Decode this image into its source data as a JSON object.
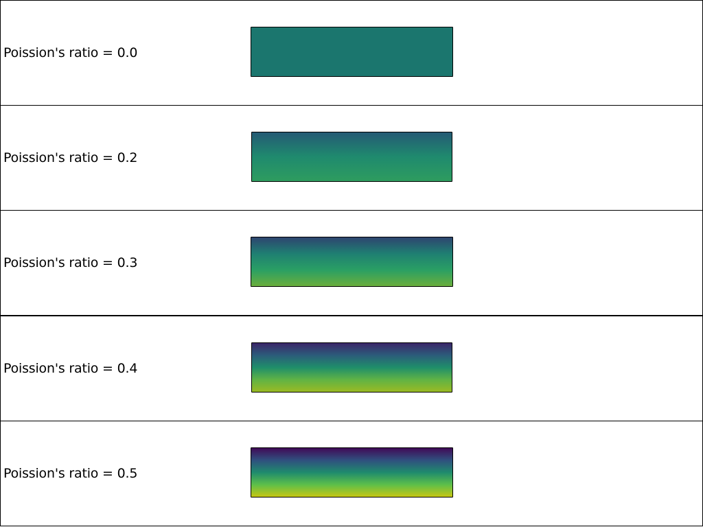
{
  "panels": [
    {
      "label": "Poission's ratio = 0.0",
      "poisson_ratio": 0.0,
      "gradient_colors": [
        "#1b766e",
        "#1b766e"
      ]
    },
    {
      "label": "Poission's ratio = 0.2",
      "poisson_ratio": 0.2,
      "gradient_colors": [
        "#255a74",
        "#1f8a6e",
        "#2e9c5f"
      ]
    },
    {
      "label": "Poission's ratio = 0.3",
      "poisson_ratio": 0.3,
      "gradient_colors": [
        "#2e456f",
        "#1f7f72",
        "#2a9f64",
        "#6aae3c"
      ]
    },
    {
      "label": "Poission's ratio = 0.4",
      "poisson_ratio": 0.4,
      "gradient_colors": [
        "#3b2668",
        "#2c5c7a",
        "#1f8e6a",
        "#60b345",
        "#9aba23"
      ]
    },
    {
      "label": "Poission's ratio = 0.5",
      "poisson_ratio": 0.5,
      "gradient_colors": [
        "#400b57",
        "#30507f",
        "#1f8b6d",
        "#5dbf4a",
        "#c6c613"
      ]
    }
  ]
}
